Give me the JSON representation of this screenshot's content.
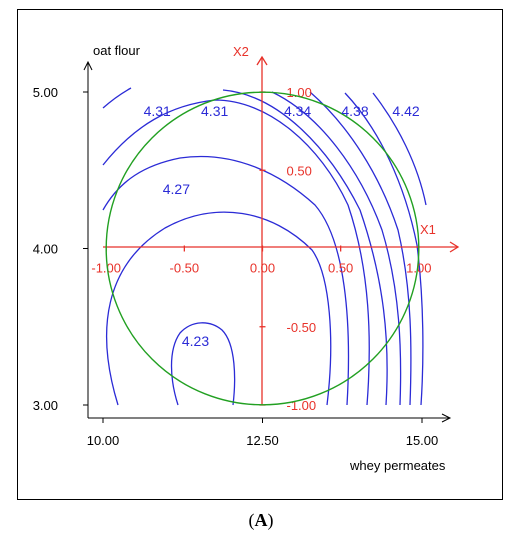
{
  "chart_data": {
    "type": "contour",
    "xlabel": "whey permeates",
    "ylabel": "oat flour",
    "xlim": [
      9.8,
      15.4
    ],
    "ylim": [
      2.92,
      5.32
    ],
    "x_ticks": [
      "10.00",
      "12.50",
      "15.00"
    ],
    "x_tick_values": [
      10.0,
      12.5,
      15.0
    ],
    "y_ticks": [
      "3.00",
      "4.00",
      "5.00"
    ],
    "y_tick_values": [
      3.0,
      4.0,
      5.0
    ],
    "coded_axes": {
      "x_name": "X1",
      "y_name": "X2",
      "x_ticks": [
        "-1.00",
        "-0.50",
        "0.00",
        "0.50",
        "1.00"
      ],
      "x_tick_values": [
        -1.0,
        -0.5,
        0.0,
        0.5,
        1.0
      ],
      "y_ticks": [
        "1.00",
        "0.50",
        "-0.50",
        "-1.00"
      ],
      "y_tick_values": [
        1.0,
        0.5,
        -0.5,
        -1.0
      ]
    },
    "region": {
      "shape": "circle",
      "center": [
        12.5,
        4.0
      ],
      "radius_coded": 1.0
    },
    "contour_labels": [
      {
        "text": "4.31",
        "x": 10.85,
        "y": 4.88
      },
      {
        "text": "4.31",
        "x": 11.75,
        "y": 4.88
      },
      {
        "text": "4.34",
        "x": 13.05,
        "y": 4.88
      },
      {
        "text": "4.38",
        "x": 13.95,
        "y": 4.88
      },
      {
        "text": "4.42",
        "x": 14.75,
        "y": 4.88
      },
      {
        "text": "4.27",
        "x": 11.15,
        "y": 4.38
      },
      {
        "text": "4.23",
        "x": 11.45,
        "y": 3.41
      }
    ],
    "colors": {
      "contour": "#2b2bd6",
      "coded_axes": "#e8322a",
      "region": "#22a022",
      "frame": "#000000"
    }
  },
  "caption": {
    "letter": "A"
  }
}
